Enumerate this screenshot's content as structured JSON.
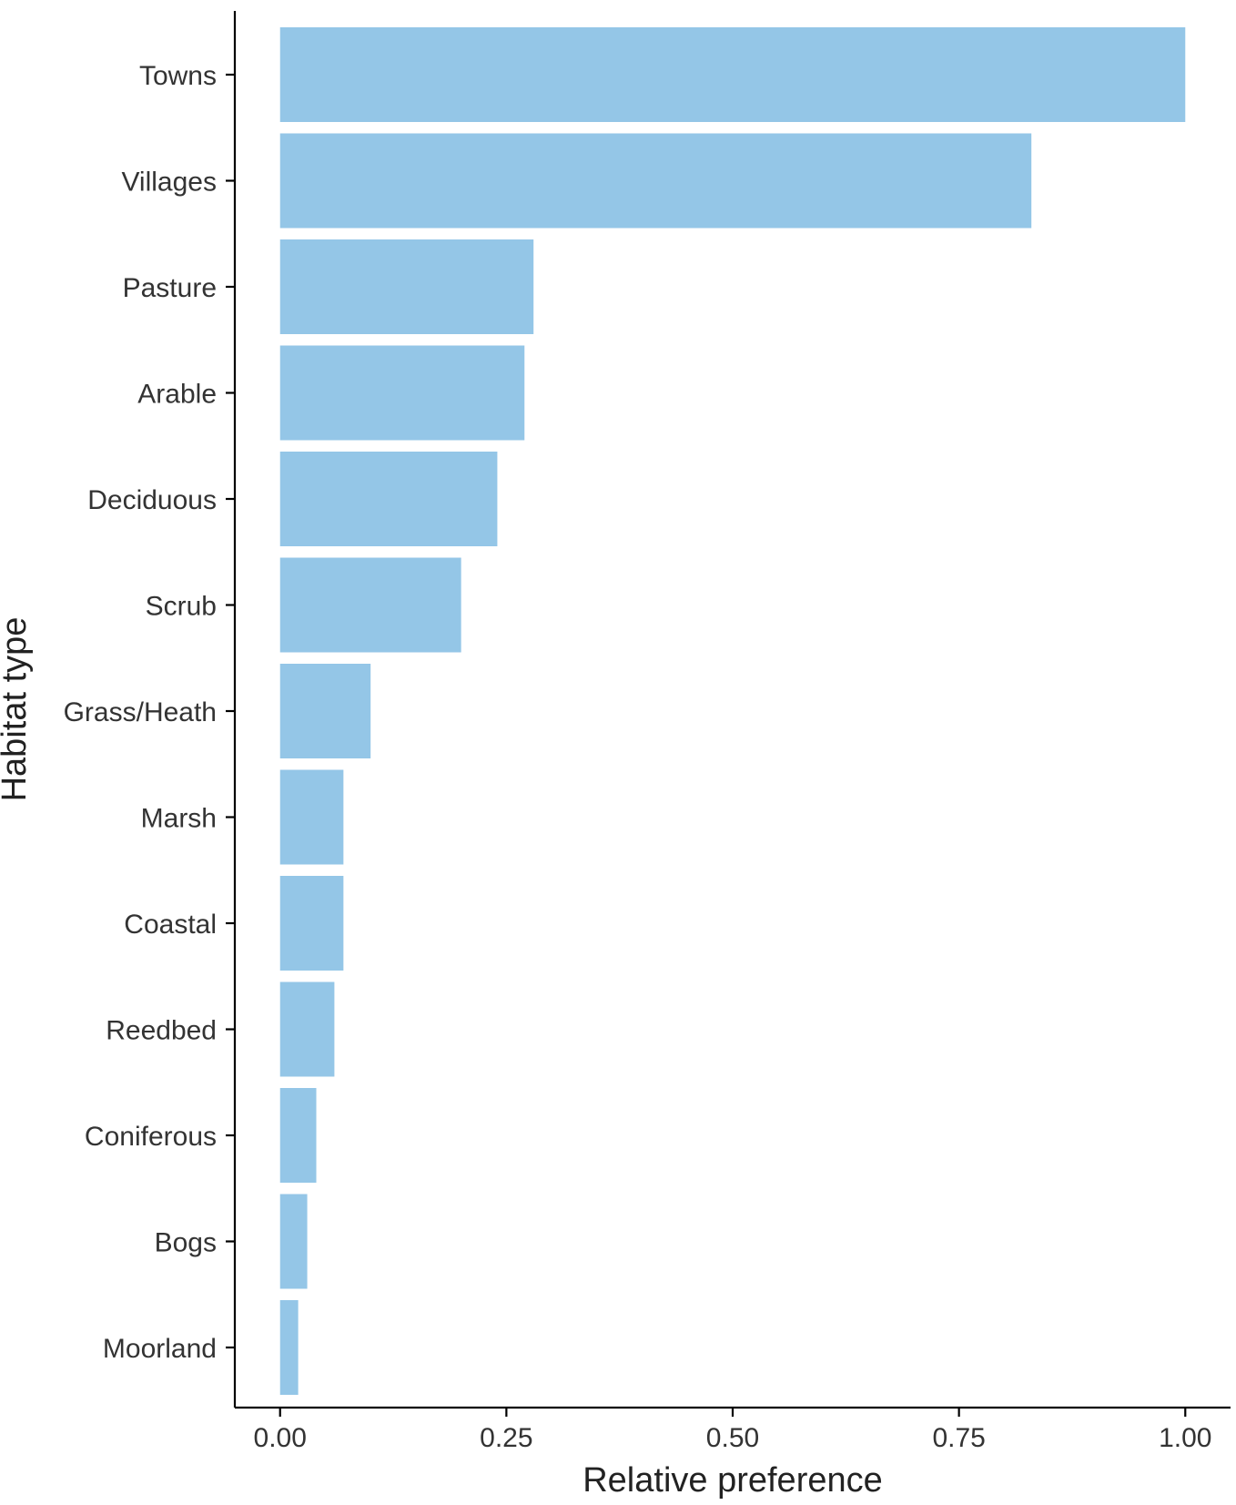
{
  "chart_data": {
    "type": "bar",
    "orientation": "horizontal",
    "categories": [
      "Towns",
      "Villages",
      "Pasture",
      "Arable",
      "Deciduous",
      "Scrub",
      "Grass/Heath",
      "Marsh",
      "Coastal",
      "Reedbed",
      "Coniferous",
      "Bogs",
      "Moorland"
    ],
    "values": [
      1.0,
      0.83,
      0.28,
      0.27,
      0.24,
      0.2,
      0.1,
      0.07,
      0.07,
      0.06,
      0.04,
      0.03,
      0.02
    ],
    "xlabel": "Relative preference",
    "ylabel": "Habitat type",
    "xlim": [
      -0.05,
      1.05
    ],
    "xticks": [
      0,
      0.25,
      0.5,
      0.75,
      1.0
    ],
    "xtick_labels": [
      "0.00",
      "0.25",
      "0.50",
      "0.75",
      "1.00"
    ],
    "grid": false,
    "legend": "none",
    "bar_color": "#94c6e7"
  }
}
